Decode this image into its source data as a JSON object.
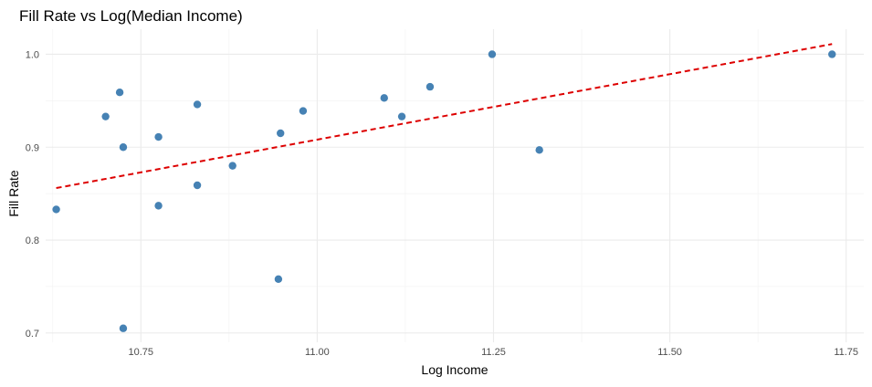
{
  "chart_data": {
    "type": "scatter",
    "title": "Fill Rate vs Log(Median Income)",
    "xlabel": "Log Income",
    "ylabel": "Fill Rate",
    "xlim": [
      10.615,
      11.775
    ],
    "ylim": [
      0.69,
      1.027
    ],
    "x_ticks": [
      10.75,
      11.0,
      11.25,
      11.5,
      11.75
    ],
    "x_tick_labels": [
      "10.75",
      "11.00",
      "11.25",
      "11.50",
      "11.75"
    ],
    "y_ticks": [
      0.7,
      0.8,
      0.9,
      1.0
    ],
    "y_tick_labels": [
      "0.7",
      "0.8",
      "0.9",
      "1.0"
    ],
    "grid": true,
    "point_color": "#4682B4",
    "trend_color": "#DD0000",
    "points": [
      {
        "x": 10.63,
        "y": 0.833
      },
      {
        "x": 10.7,
        "y": 0.933
      },
      {
        "x": 10.72,
        "y": 0.959
      },
      {
        "x": 10.725,
        "y": 0.9
      },
      {
        "x": 10.725,
        "y": 0.705
      },
      {
        "x": 10.775,
        "y": 0.911
      },
      {
        "x": 10.775,
        "y": 0.837
      },
      {
        "x": 10.83,
        "y": 0.946
      },
      {
        "x": 10.83,
        "y": 0.859
      },
      {
        "x": 10.88,
        "y": 0.88
      },
      {
        "x": 10.945,
        "y": 0.758
      },
      {
        "x": 10.948,
        "y": 0.915
      },
      {
        "x": 10.98,
        "y": 0.939
      },
      {
        "x": 11.095,
        "y": 0.953
      },
      {
        "x": 11.12,
        "y": 0.933
      },
      {
        "x": 11.16,
        "y": 0.965
      },
      {
        "x": 11.248,
        "y": 1.0
      },
      {
        "x": 11.315,
        "y": 0.897
      },
      {
        "x": 11.73,
        "y": 1.0
      }
    ],
    "trend_line": {
      "x": [
        10.63,
        11.73
      ],
      "y": [
        0.856,
        1.011
      ]
    }
  }
}
